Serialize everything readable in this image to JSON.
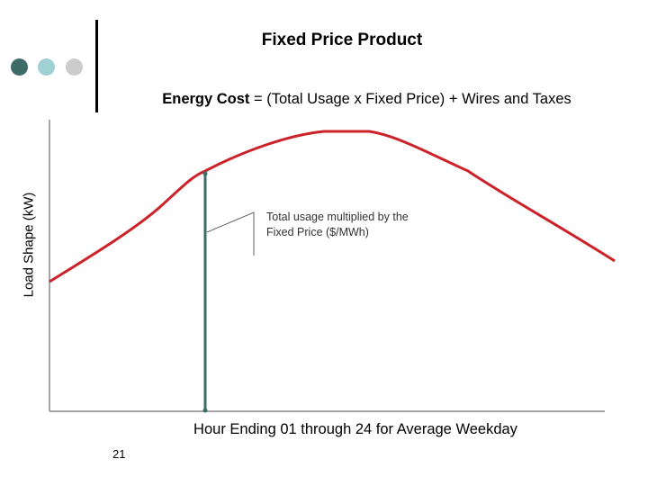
{
  "title": "Fixed Price Product",
  "subtitle": {
    "bold_part": "Energy Cost",
    "rest": " = (Total Usage x Fixed Price) + Wires and Taxes"
  },
  "y_axis_label": "Load Shape (kW)",
  "x_axis_label": "Hour Ending 01 through 24 for Average Weekday",
  "annotation": {
    "line1": "Total usage multiplied by the",
    "line2": "Fixed Price ($/MWh)"
  },
  "page_number": "21",
  "colors": {
    "curve": "#cc2229",
    "marker_line": "#3d6b68",
    "axis": "#888888",
    "dot_dark": "#3d6b68",
    "dot_light": "#9fd0d4",
    "dot_gray": "#cccccc"
  }
}
